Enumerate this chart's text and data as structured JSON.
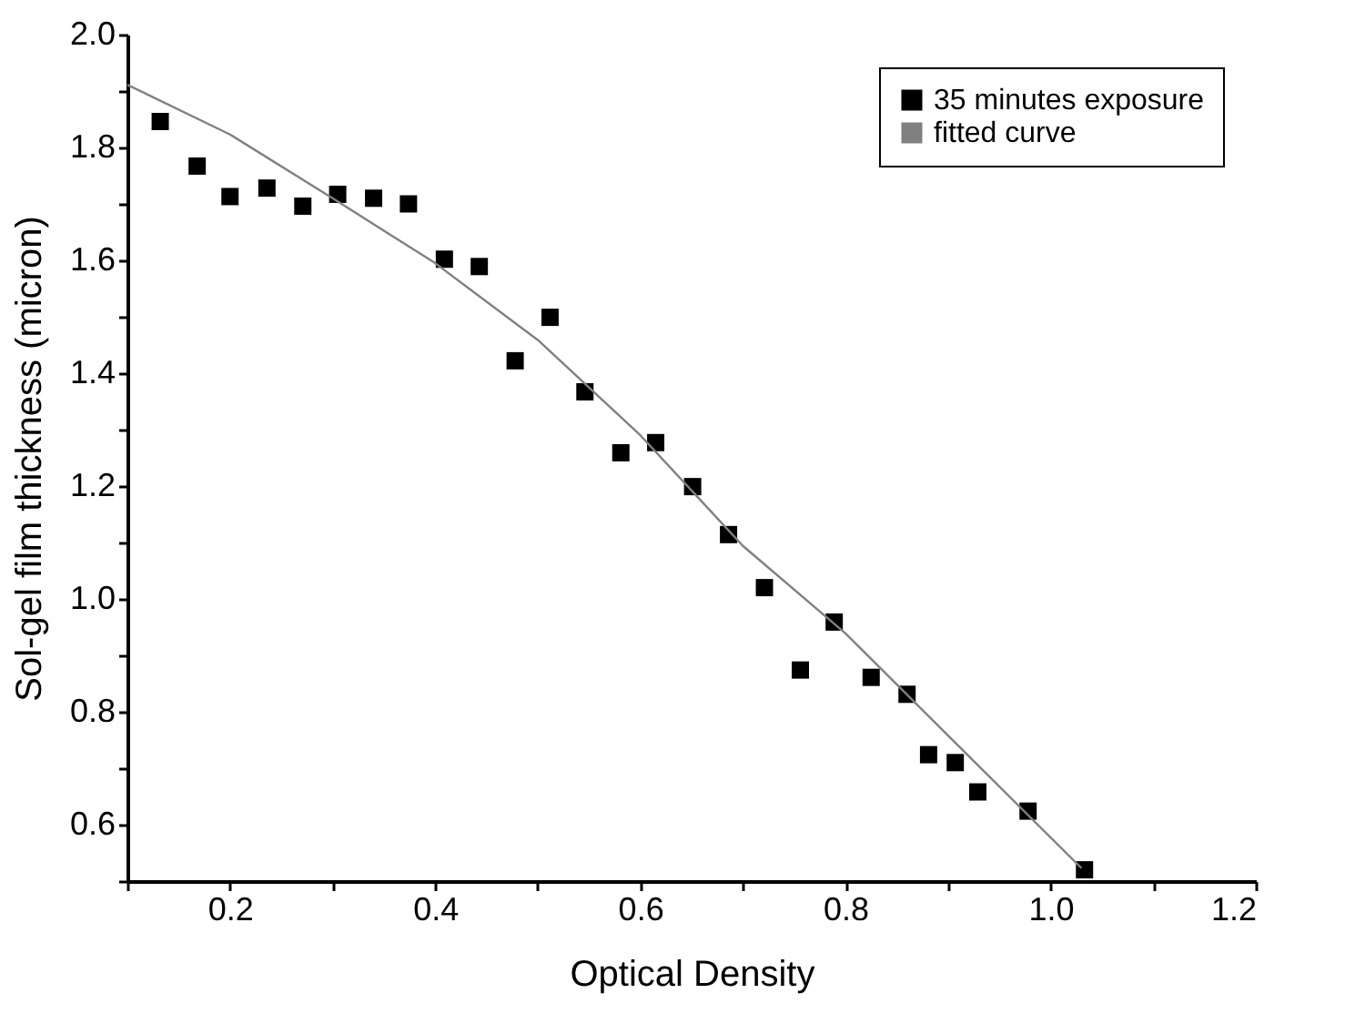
{
  "chart_data": {
    "type": "scatter",
    "xlabel": "Optical Density",
    "ylabel": "Sol-gel film thickness (micron)",
    "xlim": [
      0.1,
      1.2
    ],
    "ylim": [
      0.5,
      2.0
    ],
    "xticks": [
      {
        "value": 0.1,
        "label": null
      },
      0.2,
      {
        "value": 0.3,
        "label": null
      },
      0.4,
      {
        "value": 0.5,
        "label": null
      },
      0.6,
      {
        "value": 0.7,
        "label": null
      },
      0.8,
      {
        "value": 0.9,
        "label": null
      },
      {
        "value": 1.0,
        "label": "1.0"
      },
      {
        "value": 1.1,
        "label": null
      },
      1.2
    ],
    "yticks": [
      {
        "value": 0.5,
        "label": null
      },
      0.6,
      {
        "value": 0.7,
        "label": null
      },
      0.8,
      {
        "value": 0.9,
        "label": null
      },
      {
        "value": 1.0,
        "label": "1.0"
      },
      {
        "value": 1.1,
        "label": null
      },
      1.2,
      {
        "value": 1.3,
        "label": null
      },
      1.4,
      {
        "value": 1.5,
        "label": null
      },
      1.6,
      {
        "value": 1.7,
        "label": null
      },
      1.8,
      {
        "value": 1.9,
        "label": null
      },
      {
        "value": 2.0,
        "label": "2.0"
      }
    ],
    "grid": false,
    "legend": "top right",
    "series": [
      {
        "name": "35 minutes exposure",
        "marker": "square",
        "color": "#000000",
        "x": [
          0.132,
          0.168,
          0.2,
          0.236,
          0.271,
          0.305,
          0.34,
          0.374,
          0.409,
          0.443,
          0.478,
          0.512,
          0.546,
          0.581,
          0.615,
          0.651,
          0.686,
          0.721,
          0.756,
          0.789,
          0.825,
          0.86,
          0.881,
          0.907,
          0.929,
          0.978,
          1.033
        ],
        "values": [
          1.846,
          1.767,
          1.713,
          1.728,
          1.696,
          1.717,
          1.71,
          1.7,
          1.602,
          1.589,
          1.422,
          1.499,
          1.367,
          1.259,
          1.277,
          1.199,
          1.114,
          1.02,
          0.874,
          0.959,
          0.861,
          0.831,
          0.724,
          0.71,
          0.658,
          0.624,
          0.52
        ]
      },
      {
        "name": "fitted curve",
        "type": "line",
        "line_style": "solid",
        "color": "#808080",
        "x": [
          0.1,
          0.2,
          0.3,
          0.4,
          0.5,
          0.6,
          0.7,
          0.8,
          0.9,
          1.03
        ],
        "values": [
          1.911,
          1.823,
          1.71,
          1.595,
          1.459,
          1.29,
          1.094,
          0.939,
          0.758,
          0.523
        ]
      }
    ]
  }
}
